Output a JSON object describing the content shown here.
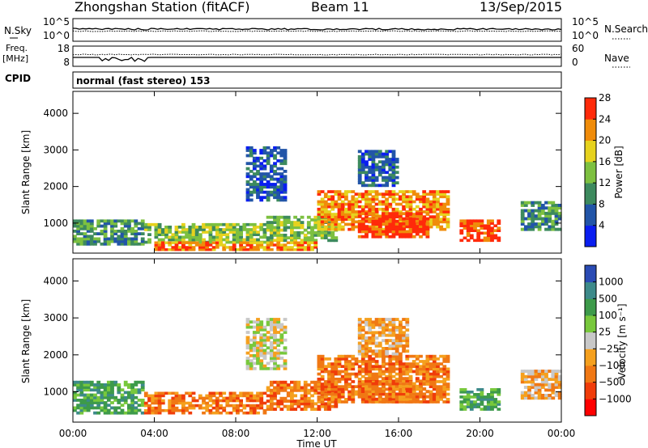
{
  "header": {
    "station": "Zhongshan Station (fitACF)",
    "beam": "Beam 11",
    "date": "13/Sep/2015"
  },
  "noise_panel": {
    "left_label": "N.Sky",
    "left_top_tick": "10^5",
    "left_bottom_tick": "10^0",
    "right_top_tick": "10^5",
    "right_bottom_tick": "10^0",
    "right_label": "N.Search"
  },
  "freq_panel": {
    "left_label_line1": "Freq.",
    "left_label_line2": "[MHz]",
    "left_top_tick": "18",
    "left_bottom_tick": "8",
    "right_top_tick": "60",
    "right_bottom_tick": "0",
    "right_label": "Nave"
  },
  "cpid_panel": {
    "label": "CPID",
    "text": "normal (fast stereo) 153"
  },
  "chart_data": [
    {
      "type": "heatmap",
      "title": "",
      "ylabel": "Slant Range [km]",
      "xlabel": "",
      "x_ticks": [
        "00:00",
        "04:00",
        "08:00",
        "12:00",
        "16:00",
        "20:00",
        "00:00"
      ],
      "y_ticks": [
        "1000",
        "2000",
        "3000",
        "4000"
      ],
      "ylim": [
        180,
        4600
      ],
      "colorbar_label": "Power [dB]",
      "colorbar_ticks": [
        "4",
        "8",
        "12",
        "16",
        "20",
        "24",
        "28"
      ],
      "colors": [
        "#0a1ef0",
        "#2255a8",
        "#3d8a5e",
        "#7dc040",
        "#e6d21e",
        "#f08c0a",
        "#ff2a0a"
      ],
      "echo_regions": [
        {
          "t0": 0.0,
          "t1": 3.5,
          "r0": 400,
          "r1": 1100,
          "level": 2
        },
        {
          "t0": 3.5,
          "t1": 9.5,
          "r0": 450,
          "r1": 1000,
          "level": 3
        },
        {
          "t0": 9.5,
          "t1": 13.0,
          "r0": 500,
          "r1": 1200,
          "level": 3
        },
        {
          "t0": 12.0,
          "t1": 18.5,
          "r0": 800,
          "r1": 1900,
          "level": 5
        },
        {
          "t0": 14.0,
          "t1": 17.5,
          "r0": 600,
          "r1": 1300,
          "level": 6
        },
        {
          "t0": 19.0,
          "t1": 21.0,
          "r0": 500,
          "r1": 1100,
          "level": 6
        },
        {
          "t0": 4.0,
          "t1": 12.0,
          "r0": 250,
          "r1": 500,
          "level": 5
        },
        {
          "t0": 8.5,
          "t1": 10.5,
          "r0": 1600,
          "r1": 3100,
          "level": 1
        },
        {
          "t0": 14.0,
          "t1": 16.0,
          "r0": 2000,
          "r1": 3000,
          "level": 1
        },
        {
          "t0": 22.0,
          "t1": 24.0,
          "r0": 800,
          "r1": 1600,
          "level": 2
        }
      ]
    },
    {
      "type": "heatmap",
      "title": "",
      "ylabel": "Slant Range [km]",
      "xlabel": "Time UT",
      "x_ticks": [
        "00:00",
        "04:00",
        "08:00",
        "12:00",
        "16:00",
        "20:00",
        "00:00"
      ],
      "y_ticks": [
        "1000",
        "2000",
        "3000",
        "4000"
      ],
      "ylim": [
        180,
        4600
      ],
      "colorbar_label": "Velocity [m s⁻¹]",
      "colorbar_ticks": [
        "1000",
        "500",
        "100",
        "25",
        "−25",
        "−100",
        "−500",
        "−1000"
      ],
      "colors": [
        "#2a4bb4",
        "#3d8a8a",
        "#3d9a4a",
        "#78c83c",
        "#c8c8c8",
        "#f5a01e",
        "#f07814",
        "#f03c0a",
        "#ff0000"
      ],
      "echo_regions": [
        {
          "t0": 0.0,
          "t1": 3.5,
          "r0": 400,
          "r1": 1300,
          "level": 2
        },
        {
          "t0": 3.5,
          "t1": 9.5,
          "r0": 400,
          "r1": 1000,
          "level": 6
        },
        {
          "t0": 9.5,
          "t1": 13.0,
          "r0": 500,
          "r1": 1300,
          "level": 6
        },
        {
          "t0": 12.0,
          "t1": 18.5,
          "r0": 700,
          "r1": 2000,
          "level": 6
        },
        {
          "t0": 14.0,
          "t1": 17.5,
          "r0": 700,
          "r1": 1400,
          "level": 6
        },
        {
          "t0": 19.0,
          "t1": 21.0,
          "r0": 500,
          "r1": 1100,
          "level": 2
        },
        {
          "t0": 8.5,
          "t1": 10.5,
          "r0": 1600,
          "r1": 3000,
          "level": 4
        },
        {
          "t0": 14.0,
          "t1": 16.5,
          "r0": 2000,
          "r1": 3000,
          "level": 5
        },
        {
          "t0": 22.0,
          "t1": 24.0,
          "r0": 800,
          "r1": 1600,
          "level": 5
        }
      ]
    }
  ]
}
